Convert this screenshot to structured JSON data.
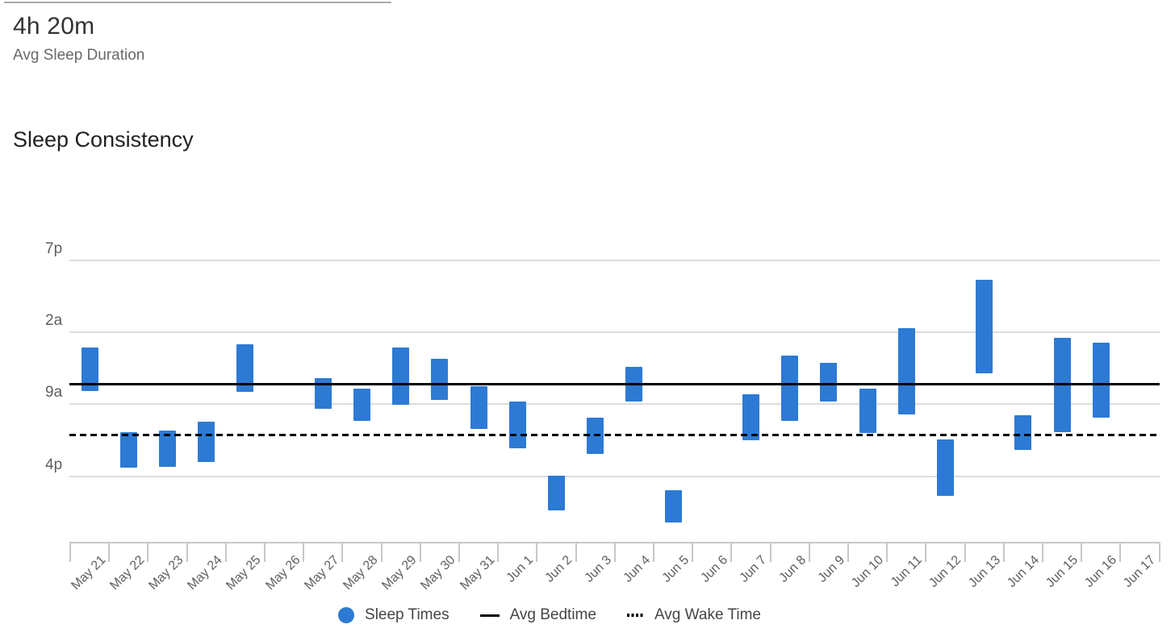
{
  "header": {
    "stat_value": "4h 20m",
    "stat_label": "Avg Sleep Duration"
  },
  "section_title": "Sleep Consistency",
  "legend": {
    "sleep_times": "Sleep Times",
    "avg_bedtime": "Avg Bedtime",
    "avg_wake_time": "Avg Wake Time"
  },
  "colors": {
    "bar_blue": "#2d7ad4",
    "line_black": "#000000",
    "grid_gray": "#dcdcdc",
    "axis_gray": "#c8c8c8",
    "label_gray": "#5f5f5f"
  },
  "chart_data": {
    "type": "bar",
    "subtype": "floating-range-columns",
    "title": "Sleep Consistency",
    "grid": "horizontal-only",
    "legend_position": "bottom-center",
    "y_axis": {
      "unit": "time-of-day",
      "ticks": [
        {
          "label": "7p",
          "hour": 19
        },
        {
          "label": "2a",
          "hour": 26
        },
        {
          "label": "9a",
          "hour": 33
        },
        {
          "label": "4p",
          "hour": 40
        }
      ],
      "range_hours": [
        15.6,
        46.4
      ],
      "note": "hour values are decimal hours from midnight; values over 24 are the following day"
    },
    "avg_bedtime": {
      "hour": 31.09,
      "label": "7:05 AM"
    },
    "avg_wake_time": {
      "hour": 36.01,
      "label": "12:00 PM"
    },
    "days": [
      {
        "date": "May 21",
        "start_h": 27.49,
        "end_h": 31.72,
        "start": "3:30 AM",
        "end": "7:45 AM"
      },
      {
        "date": "May 22",
        "start_h": 35.72,
        "end_h": 39.17,
        "start": "11:45 AM",
        "end": "3:10 PM"
      },
      {
        "date": "May 23",
        "start_h": 35.56,
        "end_h": 39.06,
        "start": "11:35 AM",
        "end": "3:05 PM"
      },
      {
        "date": "May 24",
        "start_h": 34.67,
        "end_h": 38.59,
        "start": "10:40 AM",
        "end": "2:35 PM"
      },
      {
        "date": "May 25",
        "start_h": 27.2,
        "end_h": 31.77,
        "start": "3:10 AM",
        "end": "7:45 AM"
      },
      {
        "date": "May 26",
        "start_h": null,
        "end_h": null,
        "start": null,
        "end": null
      },
      {
        "date": "May 27",
        "start_h": 30.46,
        "end_h": 33.44,
        "start": "6:30 AM",
        "end": "9:25 AM"
      },
      {
        "date": "May 28",
        "start_h": 31.49,
        "end_h": 34.62,
        "start": "7:30 AM",
        "end": "10:35 AM"
      },
      {
        "date": "May 29",
        "start_h": 27.49,
        "end_h": 33.05,
        "start": "3:30 AM",
        "end": "9:05 AM"
      },
      {
        "date": "May 30",
        "start_h": 28.58,
        "end_h": 32.58,
        "start": "4:35 AM",
        "end": "8:35 AM"
      },
      {
        "date": "May 31",
        "start_h": 31.25,
        "end_h": 35.4,
        "start": "7:15 AM",
        "end": "11:25 AM"
      },
      {
        "date": "Jun 1",
        "start_h": 32.74,
        "end_h": 37.28,
        "start": "8:45 AM",
        "end": "1:15 PM"
      },
      {
        "date": "Jun 2",
        "start_h": 39.94,
        "end_h": 43.32,
        "start": "3:55 PM",
        "end": "7:20 PM"
      },
      {
        "date": "Jun 3",
        "start_h": 34.28,
        "end_h": 37.83,
        "start": "10:15 AM",
        "end": "1:50 PM"
      },
      {
        "date": "Jun 4",
        "start_h": 29.39,
        "end_h": 32.71,
        "start": "5:25 AM",
        "end": "8:45 AM"
      },
      {
        "date": "Jun 5",
        "start_h": 41.38,
        "end_h": 44.52,
        "start": "5:25 PM",
        "end": "8:30 PM"
      },
      {
        "date": "Jun 6",
        "start_h": null,
        "end_h": null,
        "start": null,
        "end": null
      },
      {
        "date": "Jun 7",
        "start_h": 32.03,
        "end_h": 36.48,
        "start": "8:00 AM",
        "end": "12:30 PM"
      },
      {
        "date": "Jun 8",
        "start_h": 28.27,
        "end_h": 34.6,
        "start": "4:15 AM",
        "end": "10:35 AM"
      },
      {
        "date": "Jun 9",
        "start_h": 28.98,
        "end_h": 32.76,
        "start": "5:00 AM",
        "end": "8:45 AM"
      },
      {
        "date": "Jun 10",
        "start_h": 31.46,
        "end_h": 35.77,
        "start": "7:30 AM",
        "end": "11:45 AM"
      },
      {
        "date": "Jun 11",
        "start_h": 25.58,
        "end_h": 34.02,
        "start": "1:35 AM",
        "end": "10:00 AM"
      },
      {
        "date": "Jun 12",
        "start_h": 36.45,
        "end_h": 41.91,
        "start": "12:25 PM",
        "end": "5:55 PM"
      },
      {
        "date": "Jun 13",
        "start_h": 20.88,
        "end_h": 30.02,
        "start": "8:55 PM",
        "end": "6:00 AM"
      },
      {
        "date": "Jun 14",
        "start_h": 34.1,
        "end_h": 37.47,
        "start": "10:05 AM",
        "end": "1:30 PM"
      },
      {
        "date": "Jun 15",
        "start_h": 26.55,
        "end_h": 35.7,
        "start": "2:30 AM",
        "end": "11:40 AM"
      },
      {
        "date": "Jun 16",
        "start_h": 27.02,
        "end_h": 34.33,
        "start": "3:00 AM",
        "end": "10:20 AM"
      },
      {
        "date": "Jun 17",
        "start_h": null,
        "end_h": null,
        "start": null,
        "end": null
      }
    ]
  }
}
